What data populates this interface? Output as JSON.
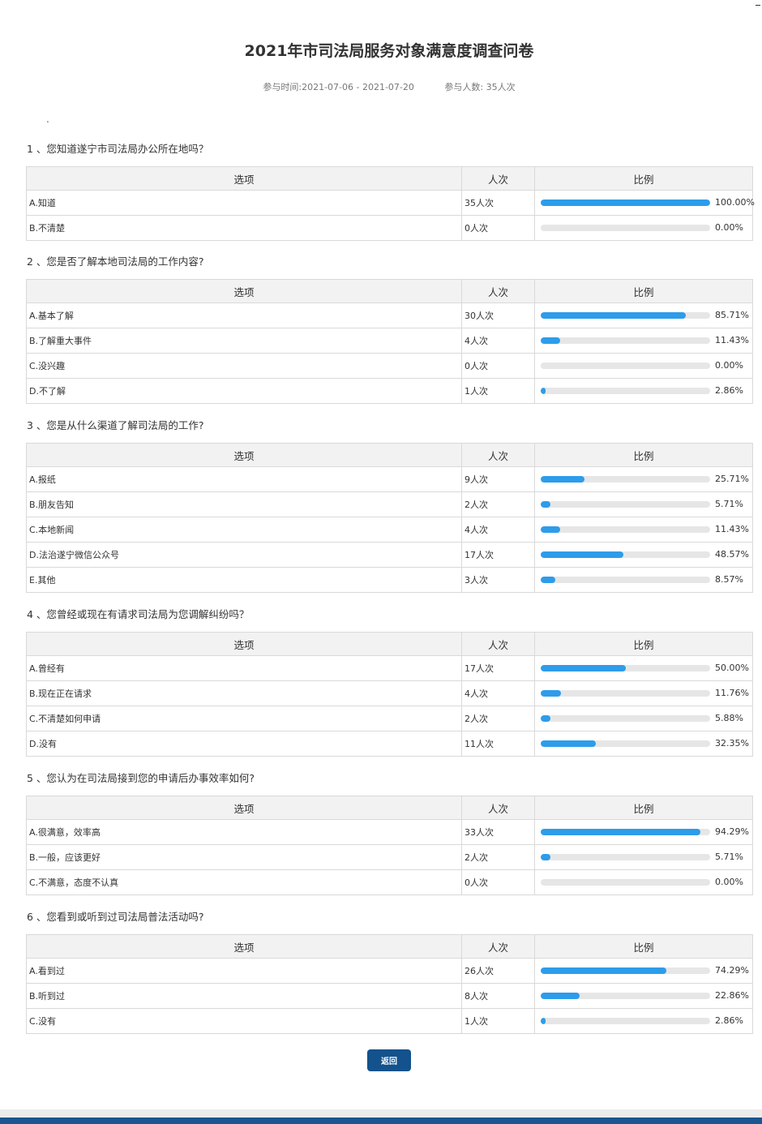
{
  "page": {
    "title": "2021年市司法局服务对象满意度调查问卷",
    "time_range": "参与时间:2021-07-06 - 2021-07-20",
    "participants": "参与人数: 35人次",
    "intro": "."
  },
  "table_headers": {
    "option": "选项",
    "count": "人次",
    "ratio": "比例"
  },
  "colors": {
    "bar_fill": "#2d9cea",
    "bar_track": "#e6e6e6",
    "button": "#13528c",
    "footer": "#1c5690"
  },
  "questions": [
    {
      "title": "1 、您知道遂宁市司法局办公所在地吗？",
      "options": [
        {
          "label": "A.知道",
          "count": "35人次",
          "percent_text": "100.00%",
          "fraction": 1.0
        },
        {
          "label": "B.不清楚",
          "count": "0人次",
          "percent_text": "0.00%",
          "fraction": 0.0
        }
      ]
    },
    {
      "title": "2 、您是否了解本地司法局的工作内容?",
      "options": [
        {
          "label": "A.基本了解",
          "count": "30人次",
          "percent_text": "85.71%",
          "fraction": 0.8571
        },
        {
          "label": "B.了解重大事件",
          "count": "4人次",
          "percent_text": "11.43%",
          "fraction": 0.1143
        },
        {
          "label": "C.没兴趣",
          "count": "0人次",
          "percent_text": "0.00%",
          "fraction": 0.0
        },
        {
          "label": "D.不了解",
          "count": "1人次",
          "percent_text": "2.86%",
          "fraction": 0.0286
        }
      ]
    },
    {
      "title": "3 、您是从什么渠道了解司法局的工作?",
      "options": [
        {
          "label": "A.报纸",
          "count": "9人次",
          "percent_text": "25.71%",
          "fraction": 0.2571
        },
        {
          "label": "B.朋友告知",
          "count": "2人次",
          "percent_text": "5.71%",
          "fraction": 0.0571
        },
        {
          "label": "C.本地新闻",
          "count": "4人次",
          "percent_text": "11.43%",
          "fraction": 0.1143
        },
        {
          "label": "D.法治遂宁微信公众号",
          "count": "17人次",
          "percent_text": "48.57%",
          "fraction": 0.4857
        },
        {
          "label": "E.其他",
          "count": "3人次",
          "percent_text": "8.57%",
          "fraction": 0.0857
        }
      ]
    },
    {
      "title": "4 、您曾经或现在有请求司法局为您调解纠纷吗？",
      "options": [
        {
          "label": "A.曾经有",
          "count": "17人次",
          "percent_text": "50.00%",
          "fraction": 0.5
        },
        {
          "label": "B.现在正在请求",
          "count": "4人次",
          "percent_text": "11.76%",
          "fraction": 0.1176
        },
        {
          "label": "C.不清楚如何申请",
          "count": "2人次",
          "percent_text": "5.88%",
          "fraction": 0.0588
        },
        {
          "label": "D.没有",
          "count": "11人次",
          "percent_text": "32.35%",
          "fraction": 0.3235
        }
      ]
    },
    {
      "title": "5 、您认为在司法局接到您的申请后办事效率如何?",
      "options": [
        {
          "label": "A.很满意，效率高",
          "count": "33人次",
          "percent_text": "94.29%",
          "fraction": 0.9429
        },
        {
          "label": "B.一般，应该更好",
          "count": "2人次",
          "percent_text": "5.71%",
          "fraction": 0.0571
        },
        {
          "label": "C.不满意，态度不认真",
          "count": "0人次",
          "percent_text": "0.00%",
          "fraction": 0.0
        }
      ]
    },
    {
      "title": "6 、您看到或听到过司法局普法活动吗?",
      "options": [
        {
          "label": "A.看到过",
          "count": "26人次",
          "percent_text": "74.29%",
          "fraction": 0.7429
        },
        {
          "label": "B.听到过",
          "count": "8人次",
          "percent_text": "22.86%",
          "fraction": 0.2286
        },
        {
          "label": "C.没有",
          "count": "1人次",
          "percent_text": "2.86%",
          "fraction": 0.0286
        }
      ]
    }
  ],
  "buttons": {
    "return_label": "返回"
  }
}
